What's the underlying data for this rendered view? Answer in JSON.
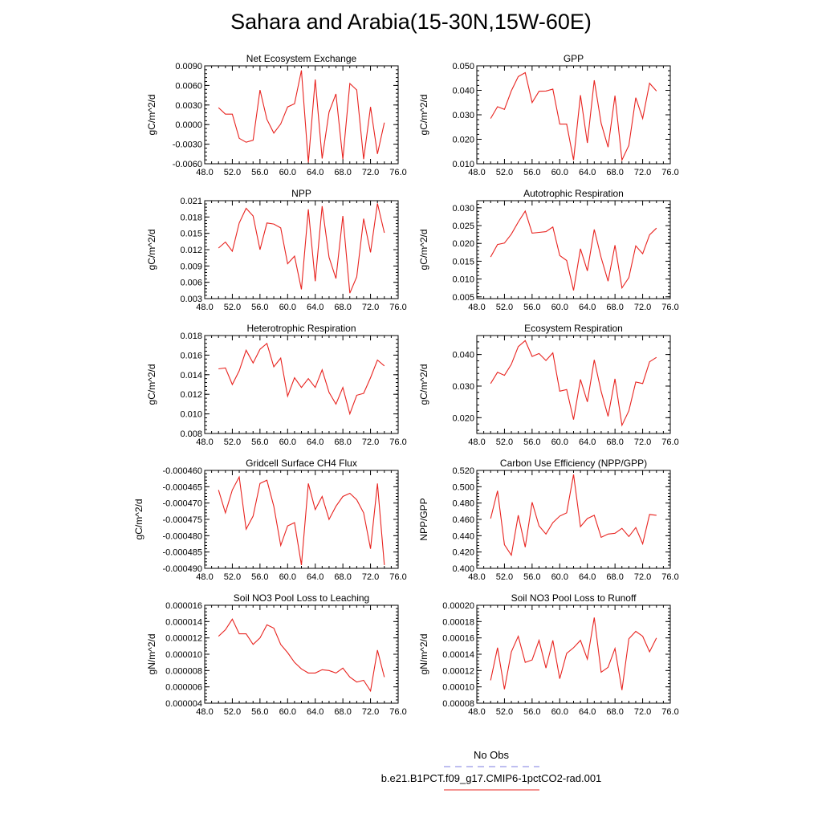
{
  "title": "Sahara and Arabia(15-30N,15W-60E)",
  "colors": {
    "series": "#e8231f",
    "obs": "#7c7ce0",
    "axis": "#000000"
  },
  "legend": {
    "obs_label": "No Obs",
    "model_label": "b.e21.B1PCT.f09_g17.CMIP6-1pctCO2-rad.001"
  },
  "chart_data": [
    {
      "type": "line",
      "title": "Net Ecosystem Exchange",
      "ylabel": "gC/m^2/d",
      "xlim": [
        48,
        76
      ],
      "xticks": [
        "48.0",
        "52.0",
        "56.0",
        "60.0",
        "64.0",
        "68.0",
        "72.0",
        "76.0"
      ],
      "ylim": [
        -0.006,
        0.009
      ],
      "yticks": [
        "-0.0060",
        "-0.0030",
        "0.0000",
        "0.0030",
        "0.0060",
        "0.0090"
      ],
      "x": [
        50,
        51,
        52,
        53,
        54,
        55,
        56,
        57,
        58,
        59,
        60,
        61,
        62,
        63,
        64,
        65,
        66,
        67,
        68,
        69,
        70,
        71,
        72,
        73,
        74
      ],
      "values": [
        0.0026,
        0.0016,
        0.0016,
        -0.0021,
        -0.0027,
        -0.0024,
        0.0053,
        0.0008,
        -0.0013,
        0.0001,
        0.0027,
        0.0032,
        0.0083,
        -0.0058,
        0.0069,
        -0.0052,
        0.0019,
        0.0047,
        -0.0053,
        0.0063,
        0.0053,
        -0.0053,
        0.0027,
        -0.0045,
        0.0003
      ]
    },
    {
      "type": "line",
      "title": "GPP",
      "ylabel": "gC/m^2/d",
      "xlim": [
        48,
        76
      ],
      "xticks": [
        "48.0",
        "52.0",
        "56.0",
        "60.0",
        "64.0",
        "68.0",
        "72.0",
        "76.0"
      ],
      "ylim": [
        0.01,
        0.05
      ],
      "yticks": [
        "0.010",
        "0.020",
        "0.030",
        "0.040",
        "0.050"
      ],
      "x": [
        50,
        51,
        52,
        53,
        54,
        55,
        56,
        57,
        58,
        59,
        60,
        61,
        62,
        63,
        64,
        65,
        66,
        67,
        68,
        69,
        70,
        71,
        72,
        73,
        74
      ],
      "values": [
        0.0285,
        0.0333,
        0.0322,
        0.0398,
        0.0456,
        0.0472,
        0.035,
        0.0396,
        0.0397,
        0.0405,
        0.0262,
        0.0262,
        0.0115,
        0.038,
        0.0185,
        0.0441,
        0.0265,
        0.0168,
        0.0378,
        0.0115,
        0.0175,
        0.037,
        0.0285,
        0.0429,
        0.0397
      ]
    },
    {
      "type": "line",
      "title": "NPP",
      "ylabel": "gC/m^2/d",
      "xlim": [
        48,
        76
      ],
      "xticks": [
        "48.0",
        "52.0",
        "56.0",
        "60.0",
        "64.0",
        "68.0",
        "72.0",
        "76.0"
      ],
      "ylim": [
        0.003,
        0.021
      ],
      "yticks": [
        "0.003",
        "0.006",
        "0.009",
        "0.012",
        "0.015",
        "0.018",
        "0.021"
      ],
      "x": [
        50,
        51,
        52,
        53,
        54,
        55,
        56,
        57,
        58,
        59,
        60,
        61,
        62,
        63,
        64,
        65,
        66,
        67,
        68,
        69,
        70,
        71,
        72,
        73,
        74
      ],
      "values": [
        0.0123,
        0.0134,
        0.0117,
        0.0169,
        0.0196,
        0.0182,
        0.012,
        0.0169,
        0.0167,
        0.016,
        0.0094,
        0.0108,
        0.0047,
        0.0194,
        0.0062,
        0.02,
        0.0106,
        0.0067,
        0.0182,
        0.004,
        0.007,
        0.0177,
        0.0115,
        0.0205,
        0.0151
      ]
    },
    {
      "type": "line",
      "title": "Autotrophic Respiration",
      "ylabel": "gC/m^2/d",
      "xlim": [
        48,
        76
      ],
      "xticks": [
        "48.0",
        "52.0",
        "56.0",
        "60.0",
        "64.0",
        "68.0",
        "72.0",
        "76.0"
      ],
      "ylim": [
        0.0045,
        0.032
      ],
      "yticks": [
        "0.005",
        "0.010",
        "0.015",
        "0.020",
        "0.025",
        "0.030"
      ],
      "x": [
        50,
        51,
        52,
        53,
        54,
        55,
        56,
        57,
        58,
        59,
        60,
        61,
        62,
        63,
        64,
        65,
        66,
        67,
        68,
        69,
        70,
        71,
        72,
        73,
        74
      ],
      "values": [
        0.0162,
        0.0197,
        0.0201,
        0.0226,
        0.026,
        0.0291,
        0.0229,
        0.0231,
        0.0233,
        0.0246,
        0.0166,
        0.0152,
        0.0068,
        0.0185,
        0.0123,
        0.0239,
        0.016,
        0.0094,
        0.0195,
        0.0075,
        0.0104,
        0.0193,
        0.0171,
        0.0224,
        0.0243
      ]
    },
    {
      "type": "line",
      "title": "Heterotrophic Respiration",
      "ylabel": "gC/m^2/d",
      "xlim": [
        48,
        76
      ],
      "xticks": [
        "48.0",
        "52.0",
        "56.0",
        "60.0",
        "64.0",
        "68.0",
        "72.0",
        "76.0"
      ],
      "ylim": [
        0.008,
        0.018
      ],
      "yticks": [
        "0.008",
        "0.010",
        "0.012",
        "0.014",
        "0.016",
        "0.018"
      ],
      "x": [
        50,
        51,
        52,
        53,
        54,
        55,
        56,
        57,
        58,
        59,
        60,
        61,
        62,
        63,
        64,
        65,
        66,
        67,
        68,
        69,
        70,
        71,
        72,
        73,
        74
      ],
      "values": [
        0.0146,
        0.0147,
        0.013,
        0.0144,
        0.0165,
        0.0152,
        0.0166,
        0.0172,
        0.0148,
        0.0157,
        0.0118,
        0.0137,
        0.0127,
        0.0136,
        0.0127,
        0.0145,
        0.0122,
        0.011,
        0.0127,
        0.01,
        0.0119,
        0.0121,
        0.0137,
        0.0155,
        0.0149
      ]
    },
    {
      "type": "line",
      "title": "Ecosystem Respiration",
      "ylabel": "gC/m^2/d",
      "xlim": [
        48,
        76
      ],
      "xticks": [
        "48.0",
        "52.0",
        "56.0",
        "60.0",
        "64.0",
        "68.0",
        "72.0",
        "76.0"
      ],
      "ylim": [
        0.015,
        0.046
      ],
      "yticks": [
        "0.020",
        "0.030",
        "0.040"
      ],
      "x": [
        50,
        51,
        52,
        53,
        54,
        55,
        56,
        57,
        58,
        59,
        60,
        61,
        62,
        63,
        64,
        65,
        66,
        67,
        68,
        69,
        70,
        71,
        72,
        73,
        74
      ],
      "values": [
        0.0308,
        0.0344,
        0.0334,
        0.0369,
        0.0425,
        0.0444,
        0.0394,
        0.0403,
        0.0381,
        0.0405,
        0.0284,
        0.0289,
        0.0194,
        0.0321,
        0.025,
        0.0383,
        0.0283,
        0.0204,
        0.0323,
        0.0176,
        0.0222,
        0.0313,
        0.0308,
        0.0377,
        0.0391
      ]
    },
    {
      "type": "line",
      "title": "Gridcell Surface CH4 Flux",
      "ylabel": "gC/m^2/d",
      "xlim": [
        48,
        76
      ],
      "xticks": [
        "48.0",
        "52.0",
        "56.0",
        "60.0",
        "64.0",
        "68.0",
        "72.0",
        "76.0"
      ],
      "ylim": [
        -0.00049,
        -0.00046
      ],
      "yticks": [
        "-0.000490",
        "-0.000485",
        "-0.000480",
        "-0.000475",
        "-0.000470",
        "-0.000465",
        "-0.000460"
      ],
      "x": [
        50,
        51,
        52,
        53,
        54,
        55,
        56,
        57,
        58,
        59,
        60,
        61,
        62,
        63,
        64,
        65,
        66,
        67,
        68,
        69,
        70,
        71,
        72,
        73,
        74
      ],
      "values": [
        -0.000466,
        -0.000473,
        -0.000466,
        -0.000462,
        -0.000478,
        -0.000474,
        -0.000464,
        -0.000463,
        -0.000471,
        -0.000483,
        -0.000477,
        -0.000476,
        -0.000489,
        -0.000464,
        -0.000472,
        -0.000468,
        -0.000475,
        -0.000471,
        -0.000468,
        -0.000467,
        -0.000469,
        -0.000473,
        -0.000484,
        -0.000464,
        -0.000489
      ]
    },
    {
      "type": "line",
      "title": "Carbon Use Efficiency (NPP/GPP)",
      "ylabel": "NPP/GPP",
      "xlim": [
        48,
        76
      ],
      "xticks": [
        "48.0",
        "52.0",
        "56.0",
        "60.0",
        "64.0",
        "68.0",
        "72.0",
        "76.0"
      ],
      "ylim": [
        0.4,
        0.52
      ],
      "yticks": [
        "0.400",
        "0.420",
        "0.440",
        "0.460",
        "0.480",
        "0.500",
        "0.520"
      ],
      "x": [
        50,
        51,
        52,
        53,
        54,
        55,
        56,
        57,
        58,
        59,
        60,
        61,
        62,
        63,
        64,
        65,
        66,
        67,
        68,
        69,
        70,
        71,
        72,
        73,
        74
      ],
      "values": [
        0.461,
        0.495,
        0.429,
        0.416,
        0.465,
        0.426,
        0.481,
        0.452,
        0.442,
        0.456,
        0.464,
        0.468,
        0.515,
        0.451,
        0.461,
        0.465,
        0.438,
        0.442,
        0.443,
        0.449,
        0.439,
        0.45,
        0.43,
        0.466,
        0.465
      ]
    },
    {
      "type": "line",
      "title": "Soil NO3 Pool Loss to Leaching",
      "ylabel": "gN/m^2/d",
      "xlim": [
        48,
        76
      ],
      "xticks": [
        "48.0",
        "52.0",
        "56.0",
        "60.0",
        "64.0",
        "68.0",
        "72.0",
        "76.0"
      ],
      "ylim": [
        4e-06,
        1.6e-05
      ],
      "yticks": [
        "0.000004",
        "0.000006",
        "0.000008",
        "0.000010",
        "0.000012",
        "0.000014",
        "0.000016"
      ],
      "x": [
        50,
        51,
        52,
        53,
        54,
        55,
        56,
        57,
        58,
        59,
        60,
        61,
        62,
        63,
        64,
        65,
        66,
        67,
        68,
        69,
        70,
        71,
        72,
        73,
        74
      ],
      "values": [
        1.22e-05,
        1.3e-05,
        1.43e-05,
        1.25e-05,
        1.25e-05,
        1.12e-05,
        1.2e-05,
        1.36e-05,
        1.32e-05,
        1.12e-05,
        1.02e-05,
        9e-06,
        8.2e-06,
        7.7e-06,
        7.7e-06,
        8.1e-06,
        8e-06,
        7.7e-06,
        8.3e-06,
        7.2e-06,
        6.6e-06,
        6.8e-06,
        5.5e-06,
        1.05e-05,
        7.2e-06
      ]
    },
    {
      "type": "line",
      "title": "Soil NO3 Pool Loss to Runoff",
      "ylabel": "gN/m^2/d",
      "xlim": [
        48,
        76
      ],
      "xticks": [
        "48.0",
        "52.0",
        "56.0",
        "60.0",
        "64.0",
        "68.0",
        "72.0",
        "76.0"
      ],
      "ylim": [
        8e-05,
        0.0002
      ],
      "yticks": [
        "0.00008",
        "0.00010",
        "0.00012",
        "0.00014",
        "0.00016",
        "0.00018",
        "0.00020"
      ],
      "x": [
        50,
        51,
        52,
        53,
        54,
        55,
        56,
        57,
        58,
        59,
        60,
        61,
        62,
        63,
        64,
        65,
        66,
        67,
        68,
        69,
        70,
        71,
        72,
        73,
        74
      ],
      "values": [
        0.000108,
        0.000148,
        9.7e-05,
        0.000143,
        0.000162,
        0.00013,
        0.000133,
        0.000157,
        0.000123,
        0.000157,
        0.00011,
        0.000141,
        0.000148,
        0.000157,
        0.000134,
        0.000185,
        0.000118,
        0.000124,
        0.000147,
        9.6e-05,
        0.000159,
        0.000168,
        0.000162,
        0.000143,
        0.00016
      ]
    }
  ]
}
